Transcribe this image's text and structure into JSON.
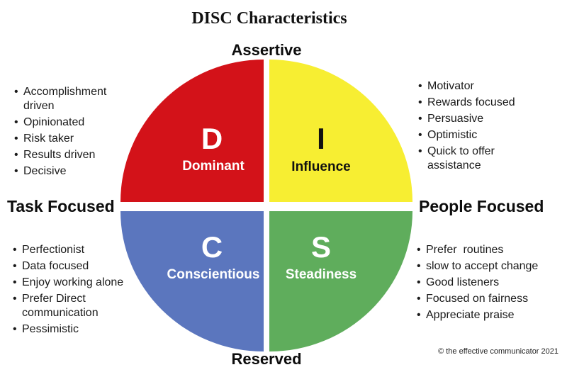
{
  "title": "DISC Characteristics",
  "axes": {
    "top": "Assertive",
    "bottom": "Reserved",
    "left": "Task Focused",
    "right": "People Focused"
  },
  "quadrants": {
    "d": {
      "letter": "D",
      "name": "Dominant",
      "color": "#d31219"
    },
    "i": {
      "letter": "I",
      "name": "Influence",
      "color": "#f7ee32"
    },
    "c": {
      "letter": "C",
      "name": "Conscientious",
      "color": "#5b76be"
    },
    "s": {
      "letter": "S",
      "name": "Steadiness",
      "color": "#5fad5c"
    }
  },
  "lists": {
    "top_left": {
      "items": [
        "Accomplishment driven",
        "Opinionated",
        "Risk taker",
        "Results driven",
        "Decisive"
      ]
    },
    "top_right": {
      "items": [
        "Motivator",
        "Rewards focused",
        "Persuasive",
        "Optimistic",
        "Quick to offer assistance"
      ]
    },
    "bottom_left": {
      "items": [
        "Perfectionist",
        "Data focused",
        "Enjoy working alone",
        "Prefer Direct communication",
        "Pessimistic"
      ]
    },
    "bottom_right": {
      "items": [
        "Prefer  routines",
        "slow to accept change",
        "Good listeners",
        "Focused on fairness",
        "Appreciate praise"
      ]
    }
  },
  "footer": {
    "copyright": "© the effective communicator 2021"
  }
}
